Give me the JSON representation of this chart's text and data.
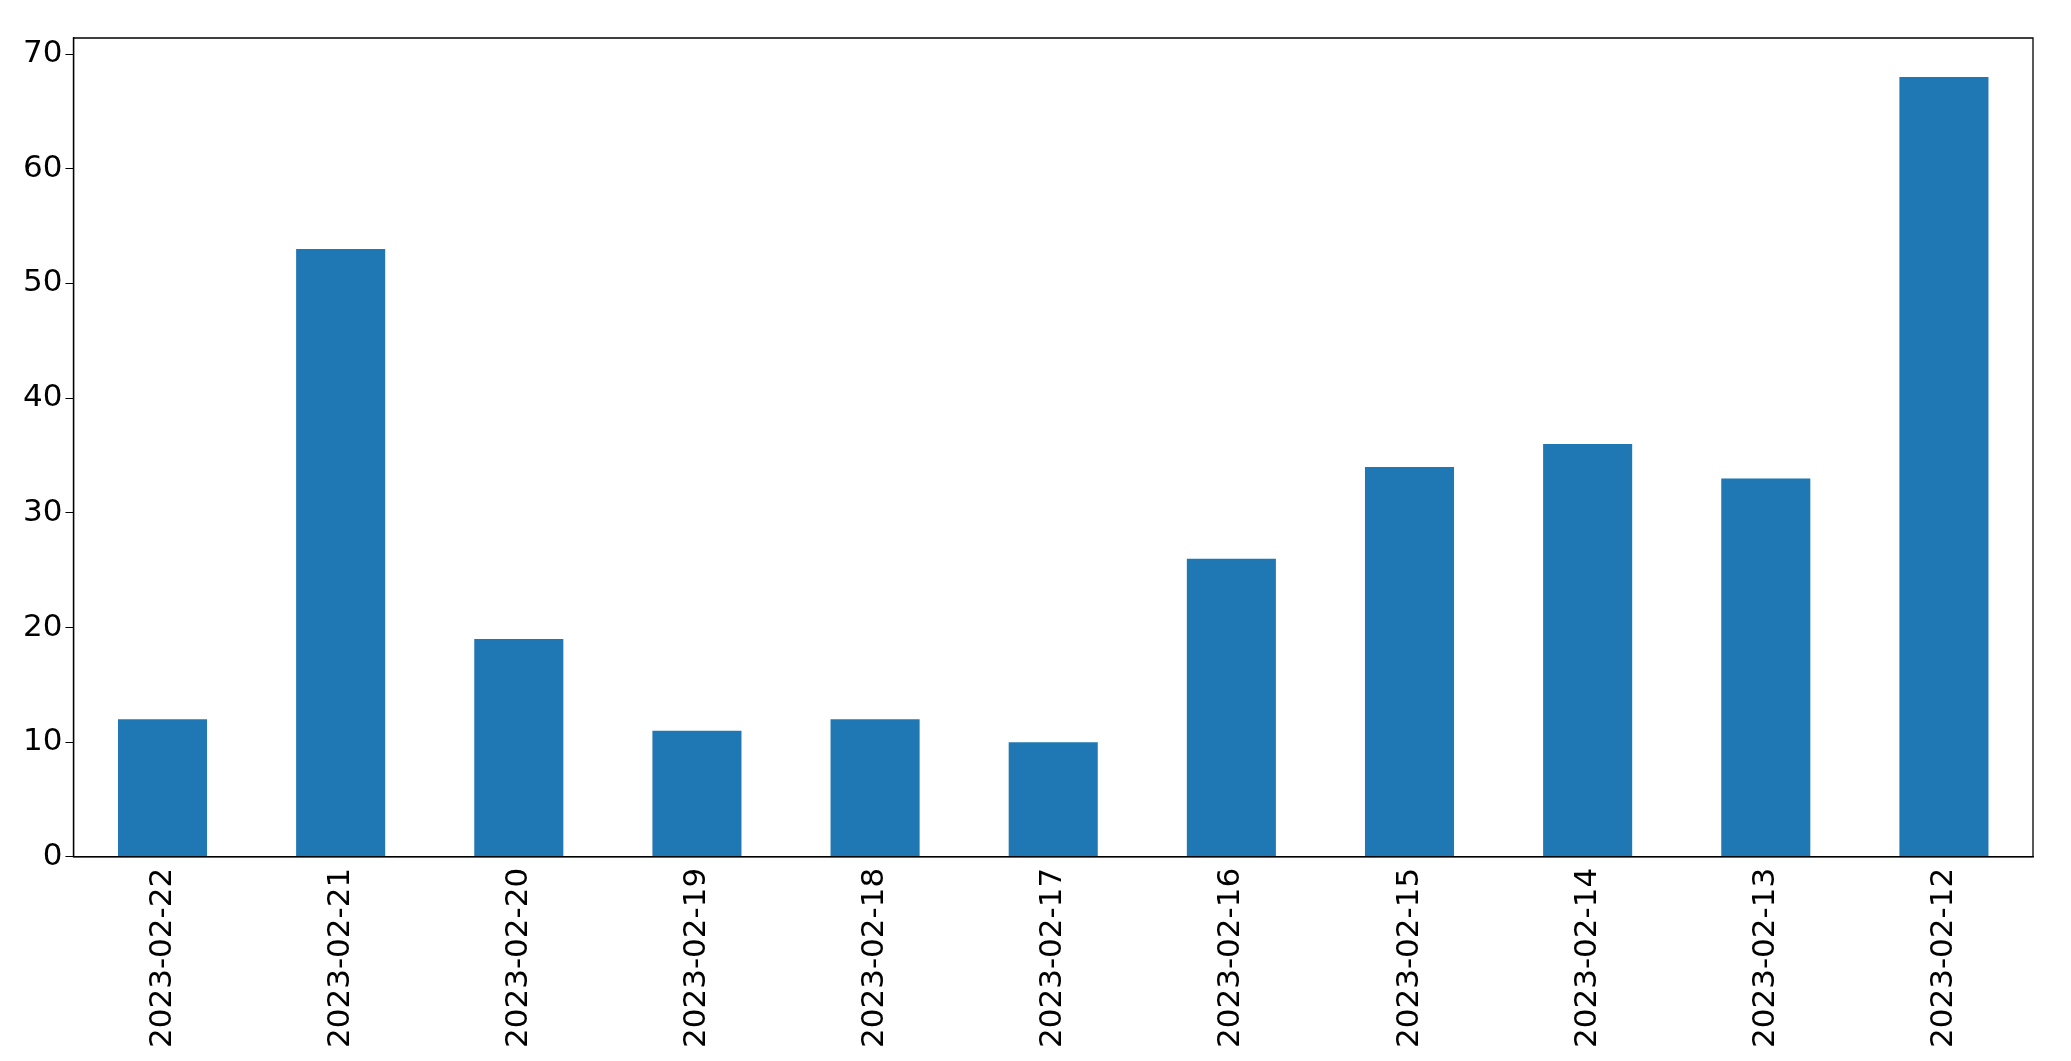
{
  "chart_data": {
    "type": "bar",
    "categories": [
      "2023-02-22",
      "2023-02-21",
      "2023-02-20",
      "2023-02-19",
      "2023-02-18",
      "2023-02-17",
      "2023-02-16",
      "2023-02-15",
      "2023-02-14",
      "2023-02-13",
      "2023-02-12"
    ],
    "values": [
      12,
      53,
      19,
      11,
      12,
      10,
      26,
      34,
      36,
      33,
      68
    ],
    "color": "#1f77b4",
    "ylim": [
      0,
      71.4
    ],
    "yticks": [
      0,
      10,
      20,
      30,
      40,
      50,
      60,
      70
    ],
    "grid": false,
    "legend": false
  }
}
